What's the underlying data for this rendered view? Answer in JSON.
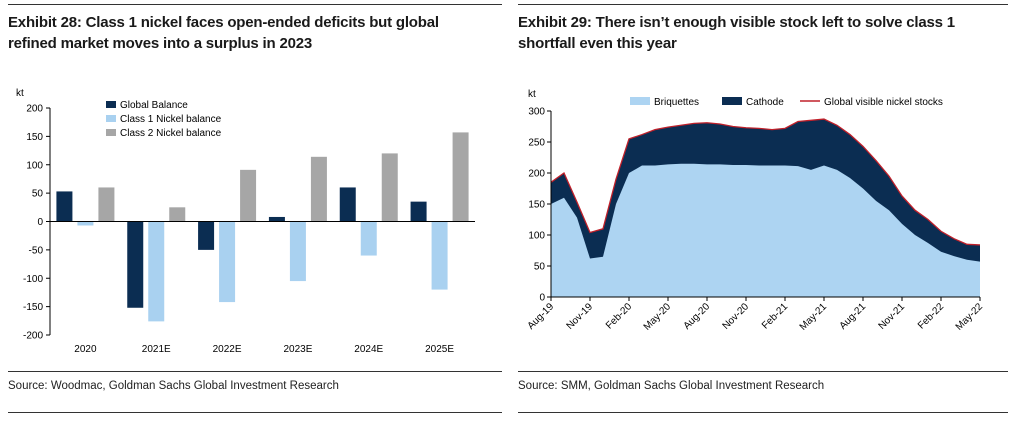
{
  "left": {
    "title_line1": "Exhibit 28: Class 1 nickel faces open-ended deficits but global",
    "title_line2": "refined market moves into a surplus in 2023",
    "source": "Source: Woodmac, Goldman Sachs Global Investment Research"
  },
  "right": {
    "title_line1": "Exhibit 29: There isn’t enough visible stock left to solve class 1",
    "title_line2": "shortfall even this year",
    "source": "Source: SMM, Goldman Sachs Global Investment Research"
  },
  "chart_data": [
    {
      "type": "bar",
      "ylabel": "kt",
      "ylim": [
        -200,
        200
      ],
      "yticks": [
        -200,
        -150,
        -100,
        -50,
        0,
        50,
        100,
        150,
        200
      ],
      "categories": [
        "2020",
        "2021E",
        "2022E",
        "2023E",
        "2024E",
        "2025E"
      ],
      "series": [
        {
          "name": "Global Balance",
          "color": "#0b2d52",
          "values": [
            53,
            -152,
            -50,
            8,
            60,
            35
          ]
        },
        {
          "name": "Class 1 Nickel balance",
          "color": "#a9d1f0",
          "values": [
            -7,
            -176,
            -142,
            -105,
            -60,
            -120
          ]
        },
        {
          "name": "Class 2 Nickel balance",
          "color": "#a6a6a6",
          "values": [
            60,
            25,
            91,
            114,
            120,
            157
          ]
        }
      ],
      "legend_position": "top-left",
      "grid": false
    },
    {
      "type": "area",
      "ylabel": "kt",
      "ylim": [
        0,
        300
      ],
      "yticks": [
        0,
        50,
        100,
        150,
        200,
        250,
        300
      ],
      "x_ticks": [
        "Aug-19",
        "Nov-19",
        "Feb-20",
        "May-20",
        "Aug-20",
        "Nov-20",
        "Feb-21",
        "May-21",
        "Aug-21",
        "Nov-21",
        "Feb-22",
        "May-22"
      ],
      "x": [
        "2019-08",
        "2019-09",
        "2019-10",
        "2019-11",
        "2019-12",
        "2020-01",
        "2020-02",
        "2020-03",
        "2020-04",
        "2020-05",
        "2020-06",
        "2020-07",
        "2020-08",
        "2020-09",
        "2020-10",
        "2020-11",
        "2020-12",
        "2021-01",
        "2021-02",
        "2021-03",
        "2021-04",
        "2021-05",
        "2021-06",
        "2021-07",
        "2021-08",
        "2021-09",
        "2021-10",
        "2021-11",
        "2021-12",
        "2022-01",
        "2022-02",
        "2022-03",
        "2022-04",
        "2022-05"
      ],
      "series": [
        {
          "name": "Briquettes",
          "color": "#add4f2",
          "values": [
            150,
            160,
            128,
            62,
            65,
            150,
            200,
            212,
            212,
            214,
            215,
            215,
            214,
            214,
            213,
            213,
            212,
            212,
            212,
            211,
            205,
            212,
            205,
            192,
            175,
            155,
            140,
            118,
            100,
            87,
            73,
            66,
            60,
            57
          ]
        },
        {
          "name": "Cathode",
          "color": "#0b2d52",
          "values": [
            35,
            40,
            25,
            42,
            45,
            40,
            55,
            50,
            58,
            60,
            62,
            65,
            67,
            65,
            62,
            60,
            60,
            58,
            60,
            72,
            80,
            75,
            72,
            70,
            68,
            65,
            55,
            45,
            40,
            38,
            33,
            28,
            25,
            27
          ]
        },
        {
          "name": "Global visible nickel stocks",
          "color": "#c0202a",
          "values": [
            185,
            200,
            153,
            104,
            110,
            190,
            255,
            262,
            270,
            274,
            277,
            280,
            281,
            279,
            275,
            273,
            272,
            270,
            272,
            283,
            285,
            287,
            277,
            262,
            243,
            220,
            195,
            163,
            140,
            125,
            106,
            94,
            85,
            84
          ]
        }
      ],
      "legend_position": "top",
      "grid": false
    }
  ]
}
